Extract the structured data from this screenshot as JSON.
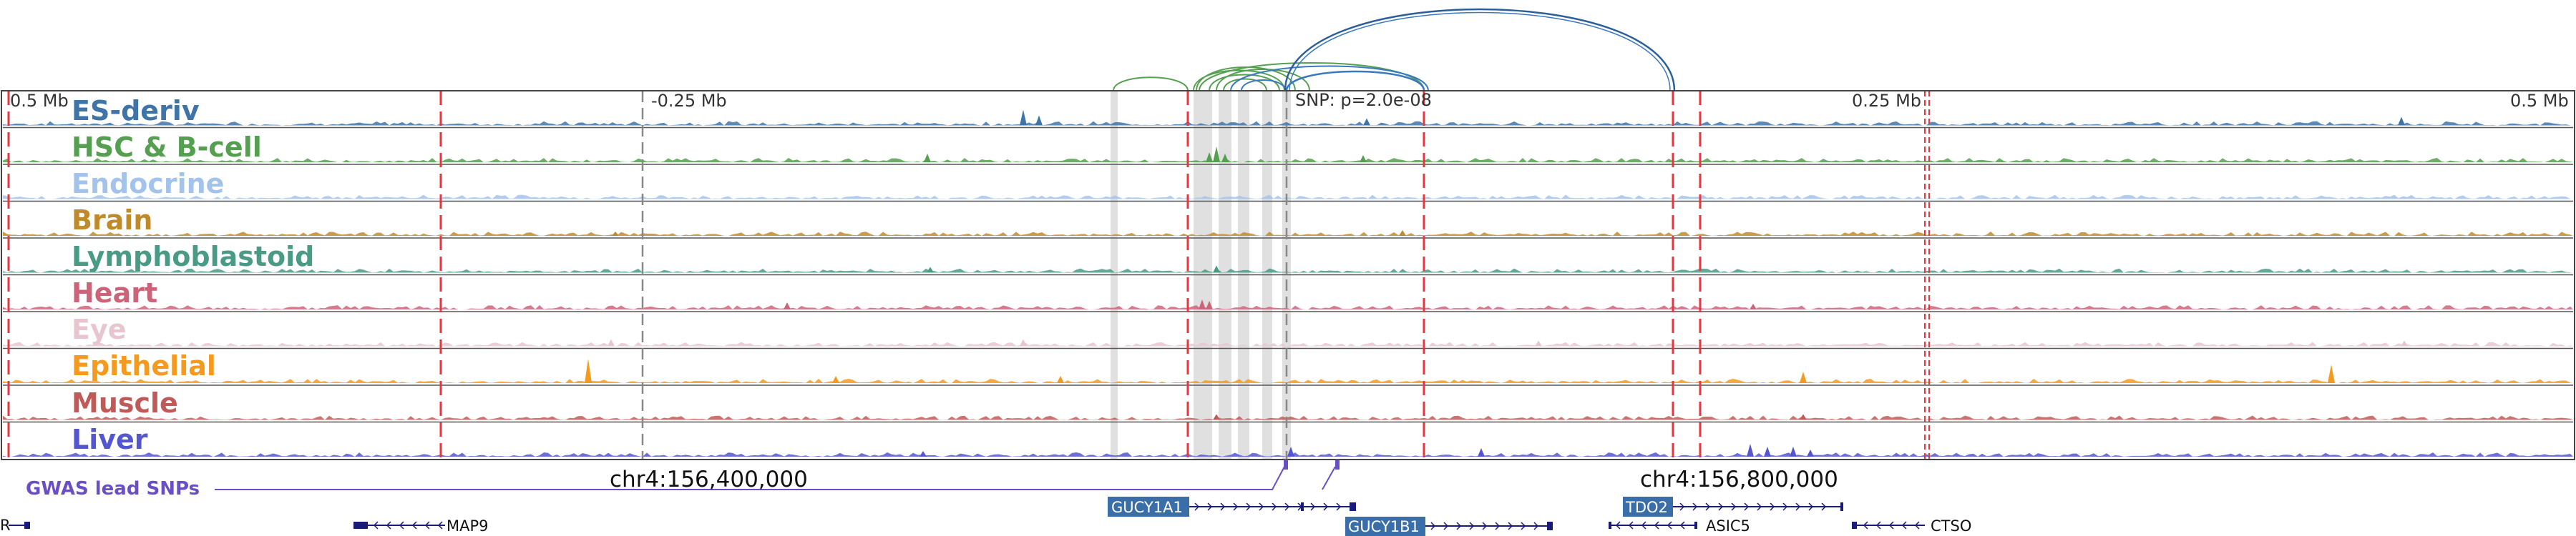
{
  "ruler": {
    "left_edge": "0.5 Mb",
    "neg_mid": "-0.25 Mb",
    "snp_label": "SNP: p=2.0e-08",
    "pos_mid": "0.25 Mb",
    "right_edge": "0.5 Mb"
  },
  "tracks": [
    {
      "name": "ES-deriv",
      "color": "#3f74a9"
    },
    {
      "name": "HSC & B-cell",
      "color": "#55a050"
    },
    {
      "name": "Endocrine",
      "color": "#a3c3ea"
    },
    {
      "name": "Brain",
      "color": "#bf8a2a"
    },
    {
      "name": "Lymphoblastoid",
      "color": "#4a9b86"
    },
    {
      "name": "Heart",
      "color": "#cc6479"
    },
    {
      "name": "Eye",
      "color": "#e8c6d0"
    },
    {
      "name": "Epithelial",
      "color": "#f39a1f"
    },
    {
      "name": "Muscle",
      "color": "#bf5a58"
    },
    {
      "name": "Liver",
      "color": "#5356d0"
    }
  ],
  "coordinates": {
    "left": "chr4:156,400,000",
    "right": "chr4:156,800,000"
  },
  "gwas": {
    "label": "GWAS lead SNPs",
    "color": "#6a4fc4"
  },
  "genes": {
    "partial": "R",
    "map9": "MAP9",
    "gucy1a1": "GUCY1A1",
    "gucy1b1": "GUCY1B1",
    "tdo2": "TDO2",
    "asic5": "ASIC5",
    "ctso": "CTSO"
  },
  "colors": {
    "gene_box": "#3a6ea8",
    "gene_line": "#1a1a7a",
    "boundary": "#e8353f",
    "arc_green": "#55a050",
    "arc_blue": "#3a78c0",
    "arc_dark": "#2c5f9a"
  }
}
